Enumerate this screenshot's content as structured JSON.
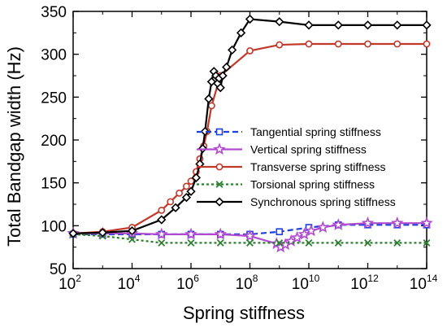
{
  "chart_data": {
    "type": "line",
    "xlabel": "Spring stiffness",
    "ylabel": "Total Bandgap width (Hz)",
    "xscale": "log",
    "xlim": [
      100,
      100000000000000
    ],
    "ylim": [
      50,
      350
    ],
    "x_ticks": [
      {
        "base": "10",
        "exp": "2",
        "value": 100
      },
      {
        "base": "10",
        "exp": "4",
        "value": 10000
      },
      {
        "base": "10",
        "exp": "6",
        "value": 1000000
      },
      {
        "base": "10",
        "exp": "8",
        "value": 100000000
      },
      {
        "base": "10",
        "exp": "10",
        "value": 10000000000
      },
      {
        "base": "10",
        "exp": "12",
        "value": 1000000000000
      },
      {
        "base": "10",
        "exp": "14",
        "value": 100000000000000
      }
    ],
    "y_ticks": [
      50,
      100,
      150,
      200,
      250,
      300,
      350
    ],
    "legend_position": "right",
    "series": [
      {
        "name": "Tangential spring stiffness",
        "color": "#1f3fd9",
        "line_style": "dashed",
        "marker": "square",
        "x": [
          100,
          1000,
          10000,
          100000,
          1000000,
          10000000,
          100000000,
          1000000000,
          10000000000,
          100000000000,
          1000000000000,
          10000000000000,
          100000000000000
        ],
        "y": [
          90,
          90,
          90,
          90,
          90,
          90,
          90,
          93,
          98,
          101,
          101,
          101,
          101
        ]
      },
      {
        "name": "Vertical spring stiffness",
        "color": "#b04bd0",
        "line_style": "solid",
        "marker": "star",
        "x": [
          100,
          1000,
          10000,
          100000,
          1000000,
          10000000,
          100000000,
          800000000,
          1100000000,
          1600000000,
          2500000000,
          4000000000,
          7000000000,
          12000000000,
          30000000000,
          100000000000,
          1000000000000,
          10000000000000,
          100000000000000
        ],
        "y": [
          91,
          91,
          91,
          90,
          90,
          90,
          88,
          79,
          75,
          78,
          82,
          86,
          90,
          94,
          98,
          101,
          103,
          103,
          103
        ]
      },
      {
        "name": "Transverse spring stiffness",
        "color": "#c0392b",
        "line_style": "solid",
        "marker": "circle",
        "x": [
          100,
          1000,
          10000,
          100000,
          200000,
          400000,
          700000,
          1000000,
          1500000,
          2000000,
          2700000,
          3500000,
          5000000,
          10000000,
          100000000,
          1000000000,
          10000000000,
          100000000000,
          1000000000000,
          10000000000000,
          100000000000000
        ],
        "y": [
          91,
          93,
          98,
          118,
          128,
          138,
          146,
          152,
          163,
          178,
          193,
          210,
          240,
          275,
          304,
          311,
          312,
          312,
          312,
          312,
          312
        ]
      },
      {
        "name": "Torsional spring stiffness",
        "color": "#2e7d32",
        "line_style": "dotted",
        "marker": "x",
        "x": [
          100,
          1000,
          10000,
          100000,
          1000000,
          10000000,
          100000000,
          1000000000,
          10000000000,
          100000000000,
          1000000000000,
          10000000000000,
          100000000000000
        ],
        "y": [
          90,
          88,
          84,
          80,
          80,
          80,
          80,
          80,
          80,
          80,
          80,
          80,
          80
        ]
      },
      {
        "name": "Synchronous spring stiffness",
        "color": "#000000",
        "line_style": "solid",
        "marker": "diamond",
        "x": [
          100,
          1000,
          10000,
          100000,
          300000,
          700000,
          1000000,
          1500000,
          2000000,
          2500000,
          3000000,
          4000000,
          5000000,
          6000000,
          7000000,
          8000000,
          9000000,
          10000000,
          12000000,
          16000000,
          25000000,
          50000000,
          100000000,
          1000000000,
          10000000000,
          100000000000,
          1000000000000,
          10000000000000,
          100000000000000
        ],
        "y": [
          91,
          92,
          94,
          107,
          121,
          133,
          140,
          156,
          172,
          190,
          210,
          248,
          268,
          280,
          275,
          266,
          272,
          261,
          275,
          285,
          305,
          325,
          341,
          338,
          334,
          334,
          334,
          334,
          334
        ]
      }
    ]
  }
}
